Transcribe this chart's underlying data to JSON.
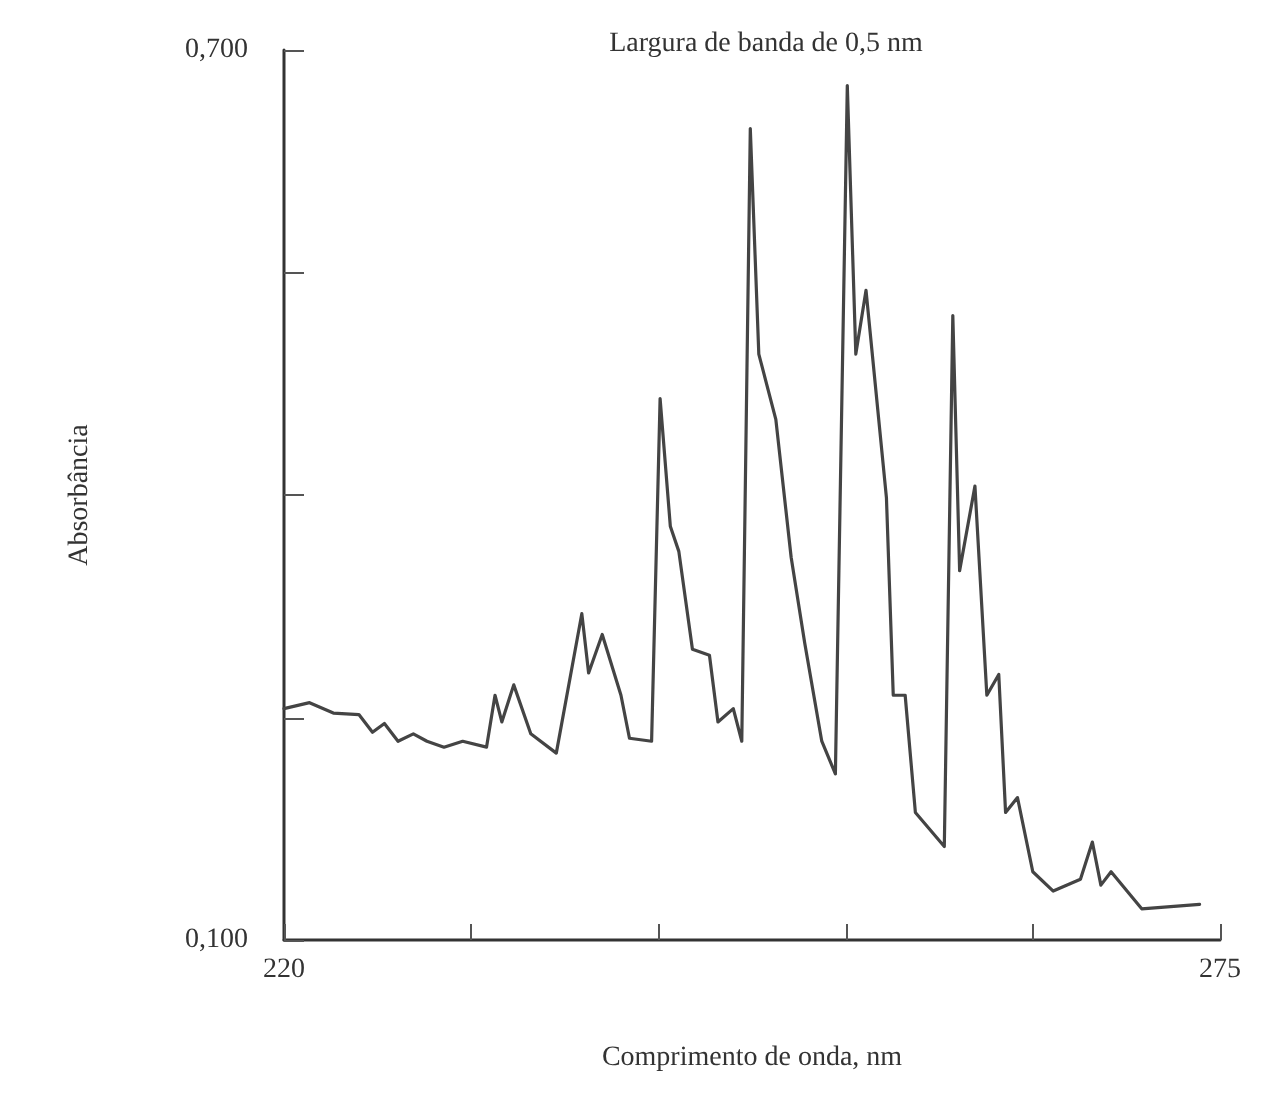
{
  "chart_data": {
    "type": "line",
    "title": "Largura de banda de 0,5 nm",
    "xlabel": "Comprimento de onda, nm",
    "ylabel": "Absorbância",
    "xlim": [
      220,
      275
    ],
    "ylim": [
      0.1,
      0.7
    ],
    "xticks": [
      220,
      {
        "value": 231,
        "label": null
      },
      {
        "value": 242,
        "label": null
      },
      {
        "value": 253,
        "label": null
      },
      {
        "value": 264,
        "label": null
      },
      275
    ],
    "yticks": [
      {
        "value": 0.1,
        "label": "0,100"
      },
      {
        "value": 0.25,
        "label": null
      },
      {
        "value": 0.4,
        "label": null
      },
      {
        "value": 0.55,
        "label": null
      },
      {
        "value": 0.7,
        "label": "0,700"
      }
    ],
    "grid": false,
    "marker": "none",
    "line_style": "solid",
    "series": [
      {
        "color": "#444444",
        "x": [
          220.0,
          221.5,
          222.9,
          224.4,
          225.2,
          225.9,
          226.7,
          227.6,
          228.4,
          229.4,
          230.5,
          231.9,
          232.4,
          232.8,
          233.5,
          234.5,
          236.0,
          237.5,
          237.9,
          238.7,
          239.8,
          240.3,
          241.6,
          242.1,
          242.7,
          243.2,
          244.0,
          245.0,
          245.5,
          246.4,
          246.9,
          247.4,
          247.9,
          248.9,
          249.8,
          250.6,
          251.6,
          252.4,
          253.1,
          253.6,
          254.2,
          255.4,
          255.8,
          256.5,
          257.1,
          258.8,
          259.3,
          259.7,
          260.6,
          261.3,
          262.0,
          262.4,
          263.1,
          264.0,
          265.2,
          266.8,
          267.5,
          268.0,
          268.6,
          270.4,
          273.8
        ],
        "values": [
          0.256,
          0.26,
          0.253,
          0.252,
          0.24,
          0.246,
          0.234,
          0.239,
          0.234,
          0.23,
          0.234,
          0.23,
          0.265,
          0.247,
          0.272,
          0.239,
          0.226,
          0.32,
          0.28,
          0.306,
          0.265,
          0.236,
          0.234,
          0.465,
          0.379,
          0.362,
          0.296,
          0.292,
          0.247,
          0.256,
          0.234,
          0.647,
          0.495,
          0.451,
          0.358,
          0.3,
          0.234,
          0.212,
          0.676,
          0.495,
          0.538,
          0.398,
          0.265,
          0.265,
          0.186,
          0.163,
          0.521,
          0.349,
          0.406,
          0.265,
          0.279,
          0.186,
          0.196,
          0.146,
          0.133,
          0.141,
          0.166,
          0.137,
          0.146,
          0.121,
          0.124
        ]
      }
    ]
  }
}
